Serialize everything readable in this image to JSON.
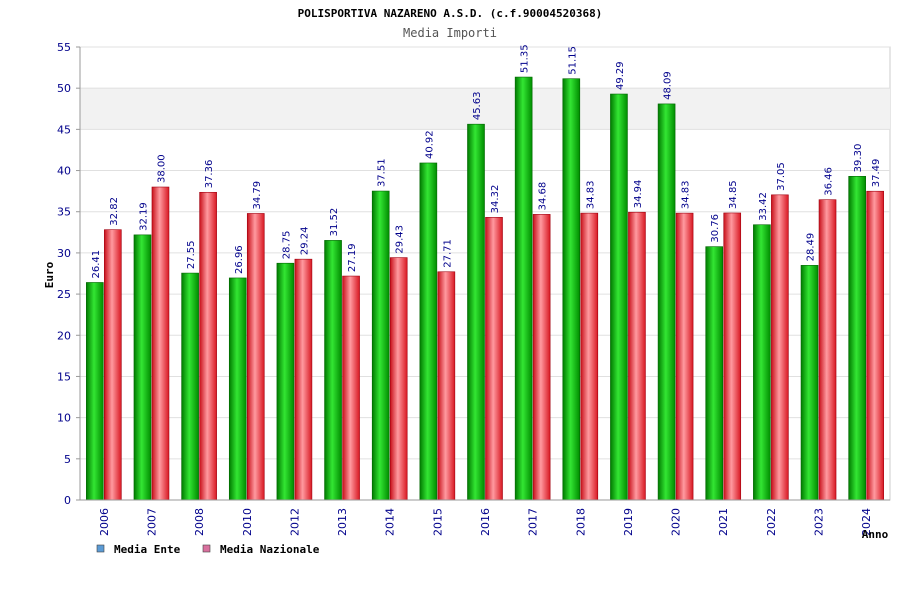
{
  "chart_data": {
    "type": "bar",
    "title": "POLISPORTIVA NAZARENO A.S.D. (c.f.90004520368)",
    "subtitle": "Media Importi",
    "xlabel": "Anno",
    "ylabel": "Euro",
    "ylim": [
      0,
      55
    ],
    "yticks": [
      0,
      5,
      10,
      15,
      20,
      25,
      30,
      35,
      40,
      45,
      50,
      55
    ],
    "grid": true,
    "legend_position": "bottom-left",
    "categories": [
      "2006",
      "2007",
      "2008",
      "2010",
      "2012",
      "2013",
      "2014",
      "2015",
      "2016",
      "2017",
      "2018",
      "2019",
      "2020",
      "2021",
      "2022",
      "2023",
      "2024"
    ],
    "series": [
      {
        "name": "Media Ente",
        "color": "#00b000",
        "legend_color": "#5b9bd5",
        "values": [
          26.41,
          32.19,
          27.55,
          26.96,
          28.75,
          31.52,
          37.51,
          40.92,
          45.63,
          51.35,
          51.15,
          49.29,
          48.09,
          30.76,
          33.42,
          28.49,
          39.3
        ],
        "labels": [
          "26.41",
          "32.19",
          "27.55",
          "26.96",
          "28.75",
          "31.52",
          "37.51",
          "40.92",
          "45.63",
          "51.35",
          "51.15",
          "49.29",
          "48.09",
          "30.76",
          "33.42",
          "28.49",
          "39.30"
        ]
      },
      {
        "name": "Media Nazionale",
        "color": "#e8202a",
        "legend_color": "#d9709e",
        "values": [
          32.82,
          38.0,
          37.36,
          34.79,
          29.24,
          27.19,
          29.43,
          27.71,
          34.32,
          34.68,
          34.83,
          34.94,
          34.83,
          34.85,
          37.05,
          36.46,
          37.49
        ],
        "labels": [
          "32.82",
          "38.00",
          "37.36",
          "34.79",
          "29.24",
          "27.19",
          "29.43",
          "27.71",
          "34.32",
          "34.68",
          "34.83",
          "34.94",
          "34.83",
          "34.85",
          "37.05",
          "36.46",
          "37.49"
        ]
      }
    ]
  }
}
